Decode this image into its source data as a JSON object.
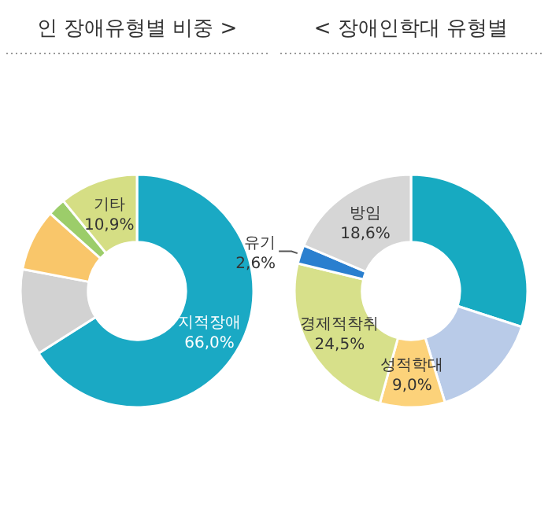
{
  "chart_data": [
    {
      "type": "donut",
      "title": "인 장애유형별 비중 >",
      "categories": [
        "지적장애",
        null,
        null,
        null,
        "기타"
      ],
      "values": [
        66.0,
        12.0,
        8.6,
        2.5,
        10.9
      ],
      "value_labels": [
        "66,0%",
        null,
        null,
        null,
        "10,9%"
      ],
      "colors": [
        "#1aa9c4",
        "#d2d2d2",
        "#f9c66a",
        "#9ccd6a",
        "#d5de84"
      ]
    },
    {
      "type": "donut",
      "title": "< 장애인학대 유형별",
      "categories": [
        null,
        null,
        "성적학대",
        "경제적착취",
        "유기",
        "방임"
      ],
      "values": [
        30.0,
        15.3,
        9.0,
        24.5,
        2.6,
        18.6
      ],
      "value_labels": [
        null,
        null,
        "9,0%",
        "24,5%",
        "2,6%",
        "18,6%"
      ],
      "colors": [
        "#17aac1",
        "#b9cbe8",
        "#fcd27a",
        "#d7e08a",
        "#2a7fcf",
        "#d6d6d6"
      ]
    }
  ]
}
